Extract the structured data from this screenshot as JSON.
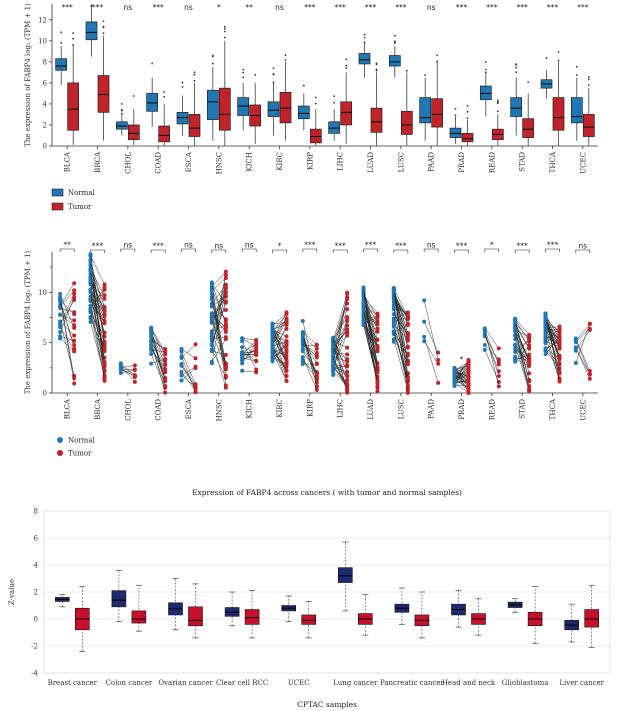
{
  "colors": {
    "normal": "#1f77b4",
    "tumor": "#c0232a",
    "normal_dark": "#1f2a6e",
    "tumor_c": "#c8102e"
  },
  "chart_data": [
    {
      "type": "boxplot",
      "ylabel": "The expression of FABP4 log₂ (TPM + 1)",
      "ylim": [
        0,
        13.5
      ],
      "yticks": [
        0,
        2,
        4,
        6,
        8,
        10,
        12
      ],
      "categories": [
        "BLCA",
        "BRCA",
        "CHOL",
        "COAD",
        "ESCA",
        "HNSC",
        "KICH",
        "KIRC",
        "KIRP",
        "LIHC",
        "LUAD",
        "LUSC",
        "PAAD",
        "PRAD",
        "READ",
        "STAD",
        "THCA",
        "UCEC"
      ],
      "significance": [
        "***",
        "***",
        "ns",
        "***",
        "ns",
        "*",
        "**",
        "ns",
        "***",
        "***",
        "***",
        "***",
        "ns",
        "***",
        "***",
        "***",
        "***",
        "***"
      ],
      "legend": [
        "Normal",
        "Tumor"
      ],
      "series": [
        {
          "name": "Normal",
          "boxes": [
            [
              5.8,
              7.2,
              7.6,
              8.3,
              9.5
            ],
            [
              8.5,
              10.1,
              10.8,
              11.8,
              13.2
            ],
            [
              1.0,
              1.6,
              1.9,
              2.3,
              3.0
            ],
            [
              1.8,
              3.3,
              4.1,
              5.0,
              6.5
            ],
            [
              1.0,
              2.1,
              2.7,
              3.2,
              4.8
            ],
            [
              0.5,
              2.5,
              4.2,
              5.3,
              7.5
            ],
            [
              1.5,
              2.9,
              3.8,
              4.6,
              6.0
            ],
            [
              1.0,
              2.8,
              3.4,
              4.2,
              6.0
            ],
            [
              1.5,
              2.6,
              3.1,
              3.8,
              5.0
            ],
            [
              0.5,
              1.2,
              1.7,
              2.3,
              3.5
            ],
            [
              6.5,
              7.8,
              8.2,
              8.8,
              9.8
            ],
            [
              6.5,
              7.6,
              8.0,
              8.6,
              9.5
            ],
            [
              0.5,
              2.2,
              2.7,
              4.6,
              6.5
            ],
            [
              0.2,
              0.8,
              1.2,
              1.7,
              2.8
            ],
            [
              2.8,
              4.4,
              5.0,
              5.7,
              7.0
            ],
            [
              1.0,
              2.8,
              3.6,
              4.6,
              6.5
            ],
            [
              4.5,
              5.5,
              5.9,
              6.3,
              7.2
            ],
            [
              0.5,
              2.2,
              2.8,
              4.6,
              6.5
            ]
          ]
        },
        {
          "name": "Tumor",
          "boxes": [
            [
              0.1,
              1.5,
              3.5,
              6.0,
              9.5
            ],
            [
              0.5,
              3.2,
              4.9,
              6.7,
              10.5
            ],
            [
              0.1,
              0.6,
              1.2,
              2.0,
              3.5
            ],
            [
              0.0,
              0.4,
              1.0,
              1.9,
              4.0
            ],
            [
              0.0,
              0.9,
              1.7,
              3.0,
              6.0
            ],
            [
              0.0,
              1.5,
              3.0,
              5.5,
              10.0
            ],
            [
              0.2,
              1.9,
              2.9,
              3.9,
              6.0
            ],
            [
              0.5,
              2.2,
              3.6,
              5.1,
              8.0
            ],
            [
              0.0,
              0.3,
              0.9,
              1.6,
              3.5
            ],
            [
              0.2,
              2.0,
              3.2,
              4.2,
              7.0
            ],
            [
              0.0,
              1.3,
              2.3,
              3.6,
              7.0
            ],
            [
              0.0,
              1.1,
              2.0,
              3.3,
              7.0
            ],
            [
              0.0,
              1.8,
              3.0,
              4.5,
              8.0
            ],
            [
              0.0,
              0.4,
              0.7,
              1.2,
              2.5
            ],
            [
              0.0,
              0.6,
              1.1,
              1.6,
              3.0
            ],
            [
              0.0,
              0.8,
              1.6,
              2.6,
              5.0
            ],
            [
              0.0,
              1.5,
              2.7,
              4.6,
              8.0
            ],
            [
              0.0,
              0.9,
              1.8,
              3.0,
              5.5
            ]
          ]
        }
      ]
    },
    {
      "type": "paired-dots",
      "ylabel": "The expression of FABP4 log₂ (TPM + 1)",
      "ylim": [
        0,
        14
      ],
      "yticks": [
        0,
        5,
        10
      ],
      "yticks_minor": [
        2.5,
        7.5,
        12.5
      ],
      "categories": [
        "BLCA",
        "BRCA",
        "CHOL",
        "COAD",
        "ESCA",
        "HNSC",
        "KICH",
        "KIRC",
        "KIRP",
        "LIHC",
        "LUAD",
        "LUSC",
        "PAAD",
        "PRAD",
        "READ",
        "STAD",
        "THCA",
        "UCEC"
      ],
      "significance": [
        "**",
        "***",
        "ns",
        "***",
        "ns",
        "ns",
        "ns",
        "*",
        "***",
        "***",
        "***",
        "***",
        "ns",
        "***",
        "*",
        "***",
        "***",
        "ns"
      ],
      "extra_marks": {
        "PRAD": "*"
      },
      "legend": [
        "Normal",
        "Tumor"
      ],
      "series": [
        {
          "name": "Normal",
          "range": [
            [
              4,
              10
            ],
            [
              5,
              14
            ],
            [
              1,
              3
            ],
            [
              2,
              6.5
            ],
            [
              0.5,
              4.5
            ],
            [
              1,
              11
            ],
            [
              1.5,
              5.5
            ],
            [
              1,
              7
            ],
            [
              1.5,
              7.5
            ],
            [
              0.5,
              5.5
            ],
            [
              5.5,
              10.5
            ],
            [
              4,
              10.5
            ],
            [
              4,
              10.5
            ],
            [
              0,
              2.5
            ],
            [
              2,
              7
            ],
            [
              1,
              7.5
            ],
            [
              3,
              8
            ],
            [
              2,
              5.5
            ]
          ],
          "n": [
            19,
            40,
            8,
            20,
            11,
            40,
            17,
            40,
            20,
            40,
            40,
            40,
            4,
            40,
            8,
            30,
            40,
            8
          ]
        },
        {
          "name": "Tumor",
          "range": [
            [
              0.5,
              12
            ],
            [
              1,
              11
            ],
            [
              0.5,
              3
            ],
            [
              0,
              5
            ],
            [
              0,
              5
            ],
            [
              0.5,
              12.5
            ],
            [
              1,
              5.5
            ],
            [
              1,
              8
            ],
            [
              0,
              5
            ],
            [
              0,
              10
            ],
            [
              0,
              8
            ],
            [
              0,
              8
            ],
            [
              1,
              4.5
            ],
            [
              0,
              3.5
            ],
            [
              0.5,
              4.5
            ],
            [
              0,
              6
            ],
            [
              1,
              7
            ],
            [
              1,
              8
            ]
          ],
          "n": [
            19,
            40,
            8,
            20,
            11,
            40,
            17,
            40,
            20,
            40,
            40,
            40,
            4,
            40,
            8,
            30,
            40,
            8
          ]
        }
      ]
    },
    {
      "type": "boxplot",
      "title": "Expression of FABP4 across cancers ( with tumor and normal samples)",
      "ylabel": "Z-value",
      "xlabel": "CPTAC samples",
      "ylim": [
        -4,
        8
      ],
      "yticks": [
        -4,
        -2,
        0,
        2,
        4,
        6,
        8
      ],
      "categories": [
        "Breast cancer",
        "Colon cancer",
        "Ovarian cancer",
        "Clear cell RCC",
        "UCEC",
        "Lung cancer",
        "Pancreatic cancer",
        "Head and neck",
        "Glioblastoma",
        "Liver cancer"
      ],
      "series": [
        {
          "name": "Normal",
          "boxes": [
            [
              0.9,
              1.3,
              1.45,
              1.6,
              1.8
            ],
            [
              -0.2,
              0.9,
              1.4,
              2.1,
              3.6
            ],
            [
              -0.8,
              0.3,
              0.75,
              1.2,
              3.0
            ],
            [
              -0.5,
              0.2,
              0.5,
              0.85,
              2.0
            ],
            [
              -0.2,
              0.6,
              0.8,
              1.0,
              1.7
            ],
            [
              0.6,
              2.7,
              3.2,
              3.8,
              5.7
            ],
            [
              -0.4,
              0.5,
              0.8,
              1.1,
              2.3
            ],
            [
              -0.6,
              0.3,
              0.7,
              1.1,
              2.1
            ],
            [
              0.5,
              0.85,
              1.05,
              1.25,
              1.5
            ],
            [
              -1.7,
              -0.8,
              -0.45,
              -0.1,
              1.1
            ]
          ]
        },
        {
          "name": "Tumor",
          "boxes": [
            [
              -2.4,
              -0.8,
              0.0,
              0.8,
              2.4
            ],
            [
              -0.9,
              -0.3,
              0.0,
              0.6,
              2.5
            ],
            [
              -1.4,
              -0.5,
              -0.1,
              0.9,
              2.6
            ],
            [
              -1.4,
              -0.4,
              0.1,
              0.7,
              2.1
            ],
            [
              -1.4,
              -0.4,
              -0.1,
              0.3,
              1.3
            ],
            [
              -1.2,
              -0.4,
              0.0,
              0.4,
              1.8
            ],
            [
              -1.4,
              -0.5,
              -0.1,
              0.3,
              2.0
            ],
            [
              -1.2,
              -0.4,
              0.0,
              0.4,
              1.5
            ],
            [
              -1.8,
              -0.5,
              0.0,
              0.5,
              2.4
            ],
            [
              -2.1,
              -0.6,
              0.0,
              0.7,
              2.5
            ]
          ]
        }
      ]
    }
  ]
}
